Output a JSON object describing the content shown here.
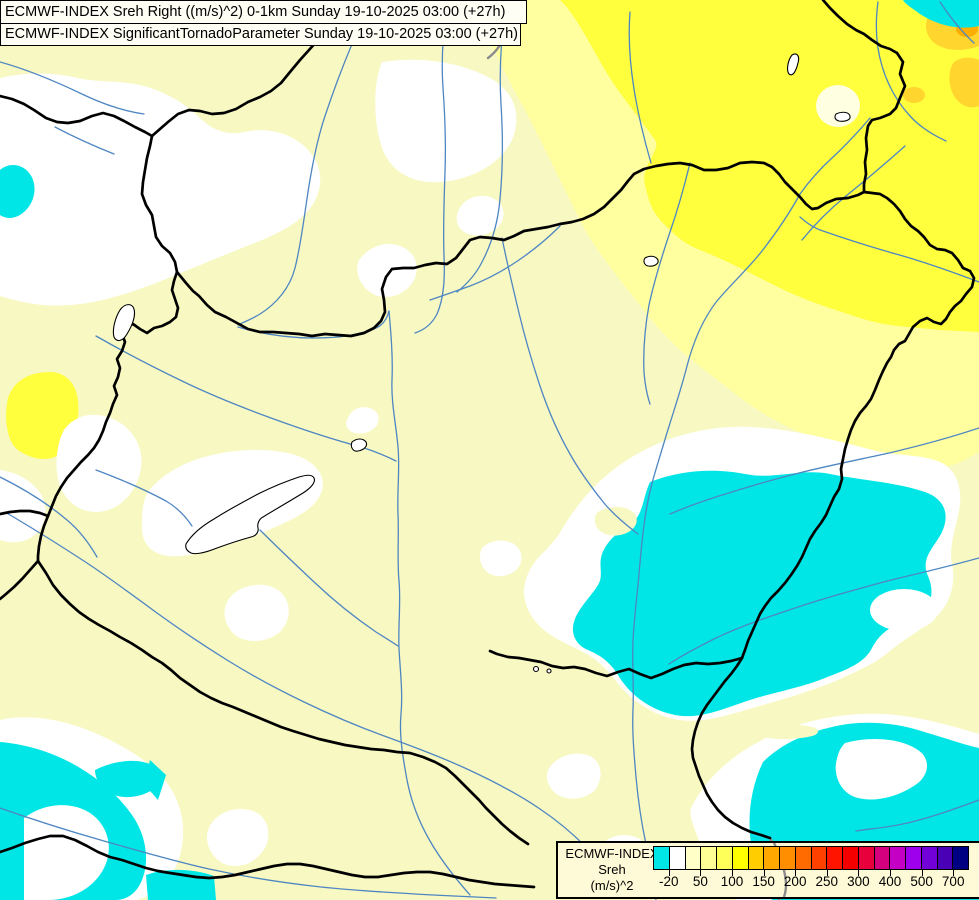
{
  "header": {
    "line1": "ECMWF-INDEX Sreh Right ((m/s)^2) 0-1km Sunday 19-10-2025 03:00 (+27h)",
    "line2": "ECMWF-INDEX SignificantTornadoParameter Sunday 19-10-2025 03:00 (+27h)"
  },
  "legend": {
    "title_line1": "ECMWF-INDEX",
    "title_line2": "Sreh",
    "title_line3": "(m/s)^2",
    "tick_labels": [
      "-20",
      "50",
      "100",
      "150",
      "200",
      "250",
      "300",
      "400",
      "500",
      "700"
    ],
    "swatches": [
      "#00E6E6",
      "#FFFFFF",
      "#FFFFC8",
      "#FFFF96",
      "#FFFF5A",
      "#FFFF00",
      "#FFCD00",
      "#FFA800",
      "#FF8F00",
      "#FF6B00",
      "#FF4100",
      "#FF1400",
      "#F50000",
      "#E8003D",
      "#D4007D",
      "#C400C4",
      "#9E00EE",
      "#7200D8",
      "#4A00B4",
      "#000082"
    ]
  },
  "colors": {
    "map_base": "#F8F8C2",
    "white_zone": "#FFFFFF",
    "yellow_mid": "#FFFFA0",
    "yellow_bright": "#FFFF3E",
    "gold": "#FFD52E",
    "orange": "#FFAE00",
    "cyan": "#00E6E6",
    "border": "#000000",
    "border_gray": "#8C8C8C",
    "river": "#4E86C2",
    "panel_title_bg": "#FEFEF4",
    "panel_legend_bg": "#FEFAD7",
    "panel_border": "#000000",
    "text": "#000000"
  },
  "chart_data": {
    "type": "heatmap",
    "title": "ECMWF-INDEX Sreh (m/s)^2, 0-1km, Sunday 19-10-2025 03:00 (+27h)",
    "legend_values": [
      -20,
      50,
      100,
      150,
      200,
      250,
      300,
      400,
      500,
      700
    ],
    "legend_position": "bottom-right",
    "depicted_range_on_map": "approximately -20 to 150 (m/s)^2; cyan areas below -20, bright yellow areas 75-150 in the northeast"
  }
}
